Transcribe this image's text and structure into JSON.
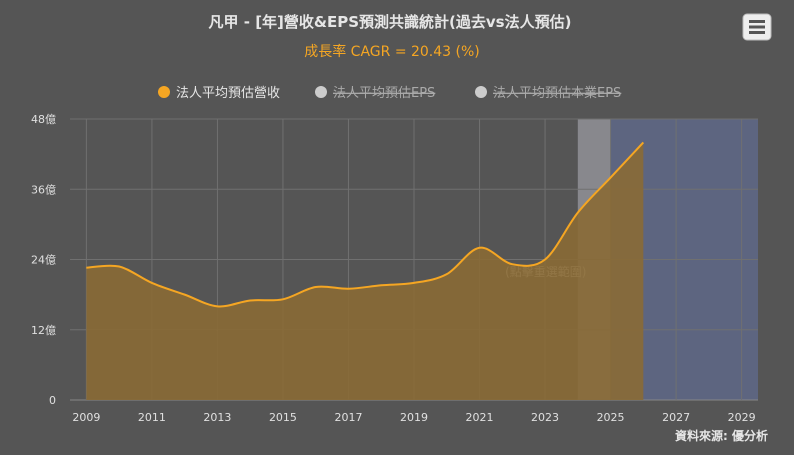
{
  "menu_icon": "hamburger-menu-icon",
  "source_label": "資料來源: 優分析",
  "colors": {
    "background": "#555555",
    "title": "#e6e6e6",
    "subtitle": "#f5a623",
    "revenue_line": "#f5a623",
    "revenue_fill": "#8a6a35",
    "legend_disabled": "#cccccc",
    "band_past": "rgba(200,200,210,0.45)",
    "band_future": "#5d6580",
    "axis_text": "#e0e0e0",
    "grid": "#707070"
  },
  "chart_data": {
    "type": "area",
    "title": "凡甲 - [年]營收&EPS預測共識統計(過去vs法人預估)",
    "subtitle": "成長率 CAGR = 20.43 (%)",
    "x_ticks": [
      "2009",
      "2011",
      "2013",
      "2015",
      "2017",
      "2019",
      "2021",
      "2023",
      "2025",
      "2027",
      "2029"
    ],
    "y_ticks": [
      "0",
      "12億",
      "24億",
      "36億",
      "48億"
    ],
    "xlim": [
      2008.5,
      2029.5
    ],
    "ylim": [
      0,
      48
    ],
    "grid": true,
    "legend_position": "top-center",
    "legend": [
      {
        "name": "法人平均預估營收",
        "enabled": true
      },
      {
        "name": "法人平均預估EPS",
        "enabled": false
      },
      {
        "name": "法人平均預估本業EPS",
        "enabled": false
      }
    ],
    "series": [
      {
        "name": "法人平均預估營收",
        "x": [
          2009,
          2010,
          2011,
          2012,
          2013,
          2014,
          2015,
          2016,
          2017,
          2018,
          2019,
          2020,
          2021,
          2022,
          2023,
          2024,
          2025,
          2026
        ],
        "values": [
          22.6,
          22.8,
          20.0,
          18.0,
          16.0,
          17.0,
          17.2,
          19.3,
          19.0,
          19.6,
          20.0,
          21.5,
          26.0,
          23.2,
          24.0,
          32.0,
          38.0,
          44.0
        ]
      }
    ],
    "bands": [
      {
        "from": 2024,
        "to": 2025,
        "label": "(點擊重選範圍)"
      },
      {
        "from": 2025,
        "to": 2029.5,
        "label": ""
      }
    ]
  }
}
